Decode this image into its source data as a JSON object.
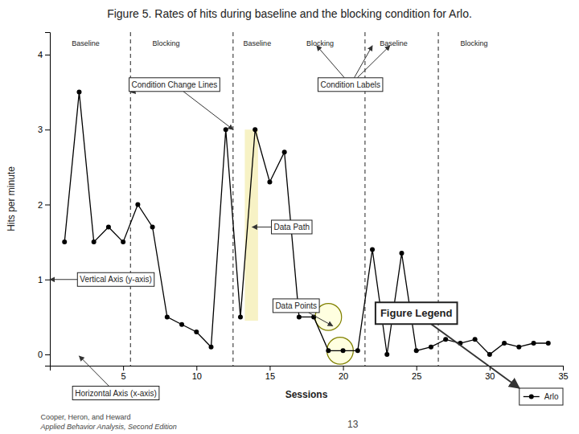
{
  "chart_data": {
    "type": "line",
    "title": "Figure 5. Rates of hits during baseline and the blocking condition for Arlo.",
    "xlabel": "Sessions",
    "ylabel": "Hits per minute",
    "x": [
      1,
      2,
      3,
      4,
      5,
      6,
      7,
      8,
      9,
      10,
      11,
      12,
      13,
      14,
      15,
      16,
      17,
      18,
      19,
      20,
      21,
      22,
      23,
      24,
      25,
      26,
      27,
      28,
      29,
      30,
      31,
      32,
      33,
      34
    ],
    "series": [
      {
        "name": "Arlo",
        "color": "#000000",
        "marker": "circle",
        "line_style": "solid",
        "values": [
          1.5,
          3.5,
          1.5,
          1.7,
          1.5,
          2.0,
          1.7,
          0.5,
          0.4,
          0.3,
          0.1,
          3.0,
          0.5,
          3.0,
          2.3,
          2.7,
          0.5,
          0.5,
          0.05,
          0.05,
          0.05,
          1.4,
          0.0,
          1.35,
          0.05,
          0.1,
          0.2,
          0.15,
          0.2,
          0.0,
          0.15,
          0.1,
          0.15,
          0.15
        ]
      }
    ],
    "xlim": [
      0,
      35
    ],
    "ylim": [
      -0.15,
      4.3
    ],
    "xticks": [
      5,
      10,
      15,
      20,
      25,
      30,
      35
    ],
    "yticks": [
      0,
      1,
      2,
      3,
      4
    ],
    "grid": false,
    "legend": "lower right",
    "phase_lines": [
      5.5,
      12.5,
      21.5,
      26.5
    ],
    "condition_labels": [
      {
        "text": "Baseline",
        "x": 1.5,
        "y": 4.12
      },
      {
        "text": "Blocking",
        "x": 7.0,
        "y": 4.12
      },
      {
        "text": "Baseline",
        "x": 13.2,
        "y": 4.12
      },
      {
        "text": "Blocking",
        "x": 17.5,
        "y": 4.12
      },
      {
        "text": "Baseline",
        "x": 22.5,
        "y": 4.12
      },
      {
        "text": "Blocking",
        "x": 28.0,
        "y": 4.12
      }
    ],
    "highlight": {
      "x": [
        13.3,
        14.2
      ],
      "y": [
        0.45,
        3.0
      ]
    },
    "ellipses": [
      {
        "x": 19.0,
        "y": 0.5,
        "rx": 0.9,
        "ry": 0.18
      },
      {
        "x": 19.8,
        "y": 0.05,
        "rx": 0.9,
        "ry": 0.18
      }
    ],
    "annotations": [
      {
        "text": "Condition Change Lines",
        "text_x": 8.5,
        "text_y": 3.6,
        "targets": [
          {
            "x": 5.5,
            "y": 3.5
          },
          {
            "x": 12.5,
            "y": 3.0
          }
        ]
      },
      {
        "text": "Condition Labels",
        "text_x": 20.5,
        "text_y": 3.6,
        "targets": [
          {
            "x": 22.0,
            "y": 4.12
          },
          {
            "x": 18.2,
            "y": 4.12
          },
          {
            "x": 23.2,
            "y": 4.12
          }
        ]
      },
      {
        "text": "Vertical Axis (y-axis)",
        "text_x": 4.5,
        "text_y": 1.0,
        "targets": [
          {
            "x": 0.0,
            "y": 1.0
          }
        ]
      },
      {
        "text": "Horizontal Axis (x-axis)",
        "text_x": 4.5,
        "text_y": -0.22,
        "targets": [
          {
            "x": 2.0,
            "y": -0.02
          }
        ]
      },
      {
        "text": "Data Path",
        "text_x": 16.5,
        "text_y": 1.7,
        "targets": [
          {
            "x": 13.8,
            "y": 1.7
          }
        ]
      },
      {
        "text": "Data Points",
        "text_x": 16.8,
        "text_y": 0.65,
        "targets": [
          {
            "x": 19.3,
            "y": 0.38
          }
        ]
      },
      {
        "text": "Figure Legend",
        "text_x": 25.0,
        "text_y": 0.55
      }
    ],
    "footer": [
      "Cooper, Heron, and Heward",
      "Applied Behavior Analysis, Second Edition",
      "13"
    ]
  }
}
